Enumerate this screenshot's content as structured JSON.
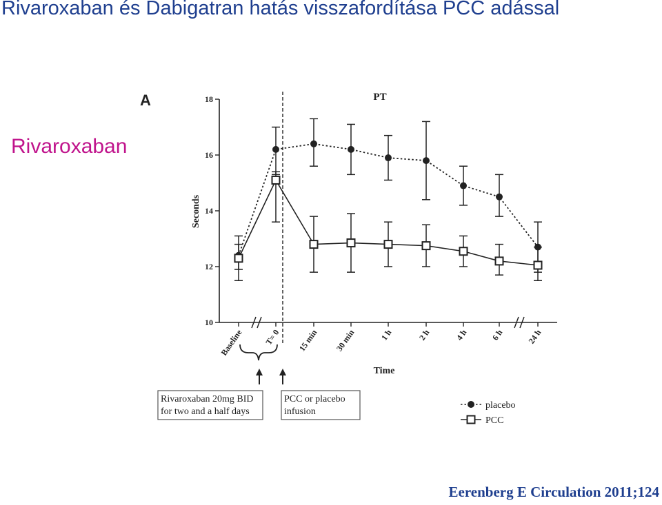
{
  "slide": {
    "title": "Rivaroxaban és Dabigatran hatás visszafordítása PCC adással",
    "side_label": "Rivaroxaban",
    "citation": "Eerenberg E Circulation 2011;124"
  },
  "annotations": {
    "box1": [
      "Rivaroxaban 20mg BID",
      "for two and a half days"
    ],
    "box2": [
      "PCC or placebo",
      "infusion"
    ]
  },
  "colors": {
    "title": "#1f3f8f",
    "side_label": "#c0148c",
    "citation": "#1f3f8f",
    "plot": "#222222"
  },
  "chart_data": {
    "type": "line",
    "panel_label": "A",
    "title": "PT",
    "xlabel": "Time",
    "ylabel": "Seconds",
    "categories": [
      "Baseline",
      "T= 0",
      "15 min",
      "30 min",
      "1 h",
      "2 h",
      "4 h",
      "6 h",
      "24 h"
    ],
    "ylim": [
      10,
      18
    ],
    "yticks": [
      10,
      12,
      14,
      16,
      18
    ],
    "grid": false,
    "legend_position": "bottom-right",
    "series": [
      {
        "name": "placebo",
        "marker": "filled-circle",
        "line": "dotted",
        "values": [
          12.4,
          16.2,
          16.4,
          16.2,
          15.9,
          15.8,
          14.9,
          14.5,
          12.7
        ],
        "err_low": [
          11.5,
          15.3,
          15.6,
          15.3,
          15.1,
          14.4,
          14.2,
          13.8,
          11.8
        ],
        "err_high": [
          13.1,
          17.0,
          17.3,
          17.1,
          16.7,
          17.2,
          15.6,
          15.3,
          13.6
        ]
      },
      {
        "name": "PCC",
        "marker": "open-square",
        "line": "solid",
        "values": [
          12.3,
          15.1,
          12.8,
          12.85,
          12.8,
          12.75,
          12.55,
          12.2,
          12.05
        ],
        "err_low": [
          11.9,
          13.6,
          11.8,
          11.8,
          12.0,
          12.0,
          12.0,
          11.7,
          11.5
        ],
        "err_high": [
          12.8,
          15.4,
          13.8,
          13.9,
          13.6,
          13.5,
          13.1,
          12.8,
          12.7
        ]
      }
    ]
  }
}
